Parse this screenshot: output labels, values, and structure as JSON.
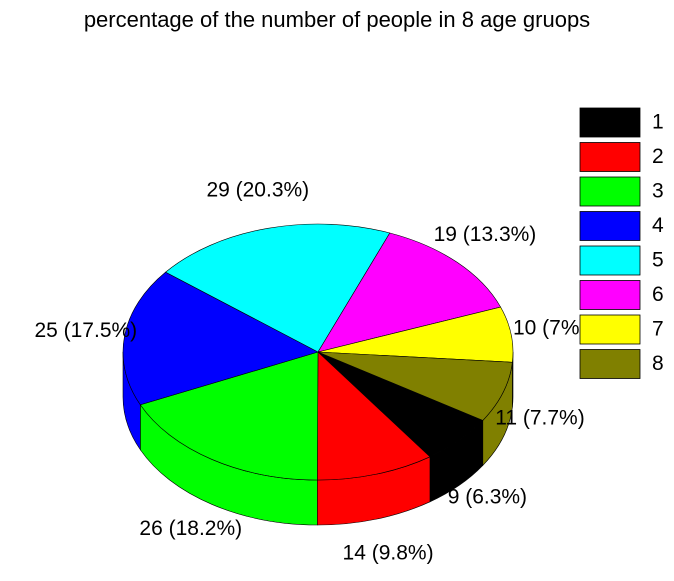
{
  "chart_data": {
    "type": "pie3d",
    "title": "percentage of the number of people in 8 age gruops",
    "categories": [
      "1",
      "2",
      "3",
      "4",
      "5",
      "6",
      "7",
      "8"
    ],
    "values": [
      9,
      14,
      26,
      25,
      29,
      19,
      10,
      11
    ],
    "value_labels": [
      "9 (6.3%)",
      "14 (9.8%)",
      "26 (18.2%)",
      "25 (17.5%)",
      "29 (20.3%)",
      "19 (13.3%)",
      "10 (7%)",
      "11 (7.7%)"
    ],
    "colors": [
      "#000000",
      "#ff0000",
      "#00ff00",
      "#0000ff",
      "#00ffff",
      "#ff00ff",
      "#ffff00",
      "#808000"
    ],
    "legend": "right"
  }
}
